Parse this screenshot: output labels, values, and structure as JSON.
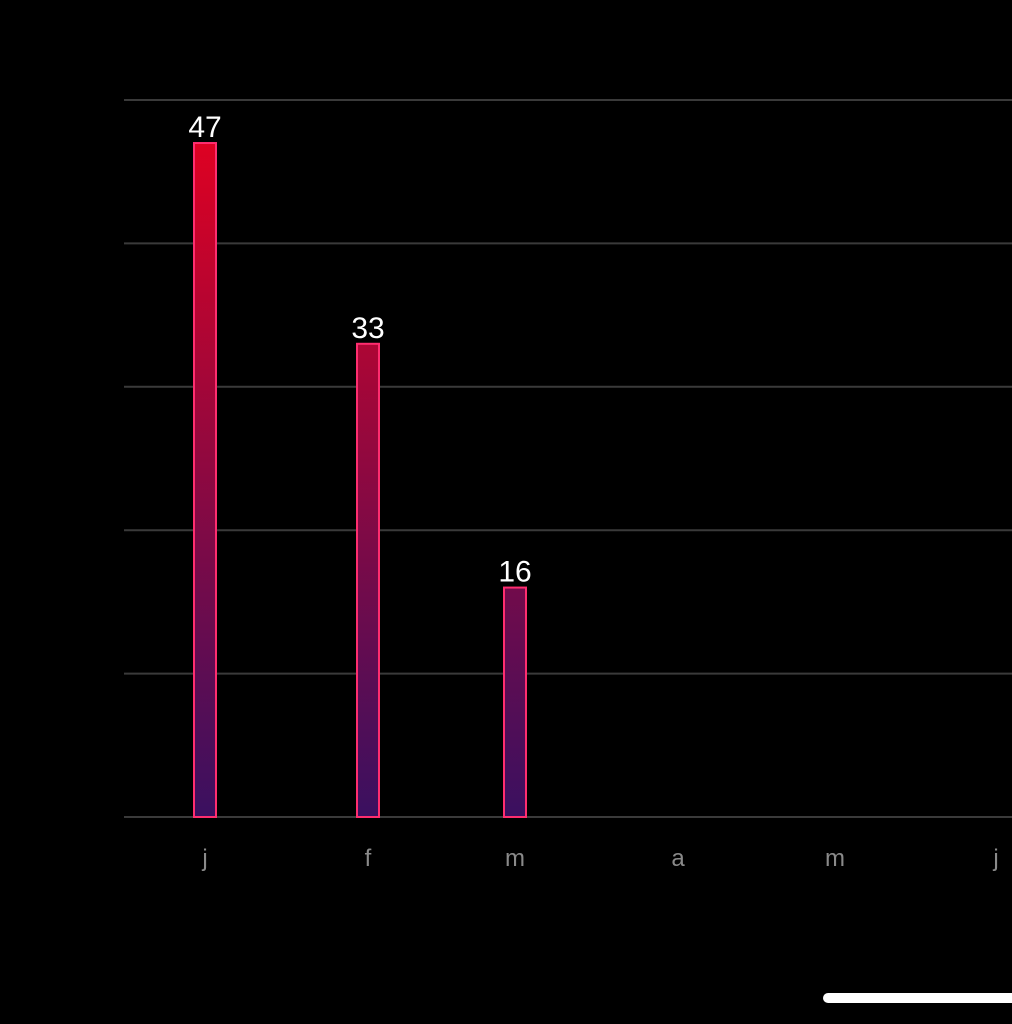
{
  "chart_data": {
    "type": "bar",
    "categories": [
      "j",
      "f",
      "m",
      "a",
      "m",
      "j"
    ],
    "values": [
      47,
      33,
      16,
      null,
      null,
      null
    ],
    "data_labels": [
      "47",
      "33",
      "16",
      "",
      "",
      ""
    ],
    "title": "",
    "xlabel": "",
    "ylabel": "",
    "ylim": [
      0,
      50
    ],
    "grid": true,
    "legend": "none",
    "colors": {
      "background": "#000000",
      "grid": "#3a3a3a",
      "bar_top": "#e8001e",
      "bar_bottom": "#3a1060",
      "bar_border": "#ff2d6f",
      "data_label": "#ffffff",
      "tick_label": "#8a8a8a"
    }
  }
}
